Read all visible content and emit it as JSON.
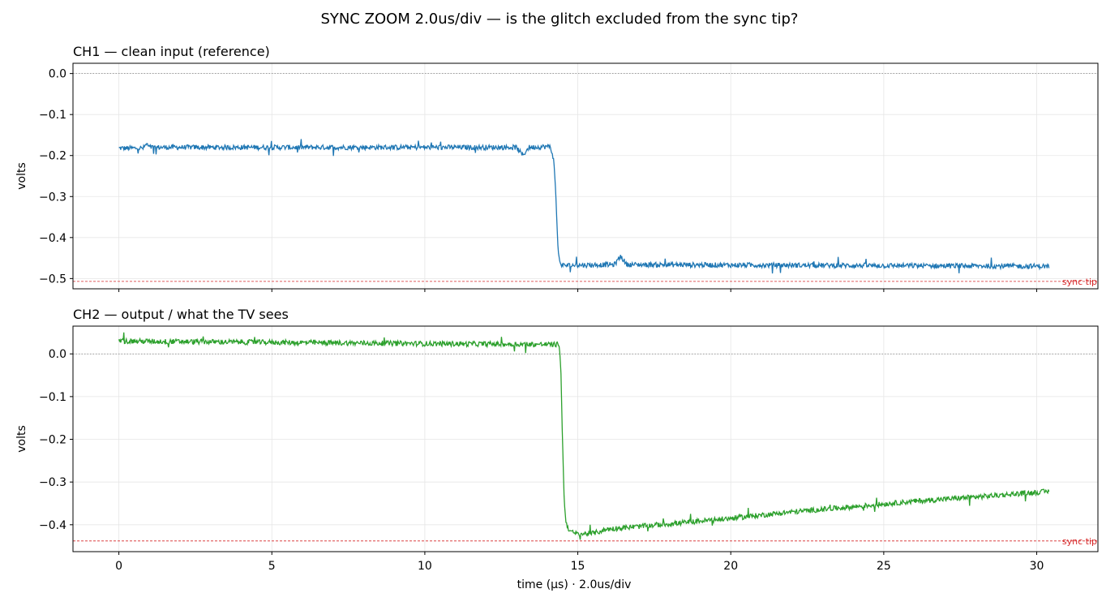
{
  "figure": {
    "title": "SYNC ZOOM  2.0us/div  —  is the glitch excluded from the sync tip?"
  },
  "chart_data": [
    {
      "type": "line",
      "title": "CH1 — clean input (reference)",
      "xlabel": "",
      "ylabel": "volts",
      "xlim": [
        -1.5,
        32.0
      ],
      "ylim": [
        -0.525,
        0.025
      ],
      "xticks": [
        0,
        5,
        10,
        15,
        20,
        25,
        30
      ],
      "yticks": [
        0.0,
        -0.1,
        -0.2,
        -0.3,
        -0.4,
        -0.5
      ],
      "ytick_labels": [
        "0.0",
        "−0.1",
        "−0.2",
        "−0.3",
        "−0.4",
        "−0.5"
      ],
      "grid": true,
      "reference_lines": [
        {
          "y": 0.0,
          "style": "dotted",
          "color": "#808080",
          "label": ""
        },
        {
          "y": -0.507,
          "style": "dashed",
          "color": "#d62728",
          "label": "sync tip"
        }
      ],
      "series": [
        {
          "color": "#1f77b4",
          "noise": 0.006,
          "x": [
            0,
            0.8,
            0.9,
            1.0,
            5,
            13.0,
            13.2,
            13.4,
            14.1,
            14.2,
            14.25,
            14.3,
            14.35,
            14.4,
            14.5,
            16.2,
            16.4,
            16.6,
            30.4
          ],
          "y": [
            -0.182,
            -0.182,
            -0.172,
            -0.18,
            -0.18,
            -0.18,
            -0.2,
            -0.18,
            -0.178,
            -0.205,
            -0.25,
            -0.33,
            -0.42,
            -0.46,
            -0.468,
            -0.466,
            -0.445,
            -0.466,
            -0.47
          ]
        }
      ]
    },
    {
      "type": "line",
      "title": "CH2 — output / what the TV sees",
      "xlabel": "time (µs)   ·   2.0us/div",
      "ylabel": "volts",
      "xlim": [
        -1.5,
        32.0
      ],
      "ylim": [
        -0.463,
        0.065
      ],
      "xticks": [
        0,
        5,
        10,
        15,
        20,
        25,
        30
      ],
      "xtick_labels": [
        "0",
        "5",
        "10",
        "15",
        "20",
        "25",
        "30"
      ],
      "yticks": [
        0.0,
        -0.1,
        -0.2,
        -0.3,
        -0.4
      ],
      "ytick_labels": [
        "0.0",
        "−0.1",
        "−0.2",
        "−0.3",
        "−0.4"
      ],
      "grid": true,
      "reference_lines": [
        {
          "y": 0.0,
          "style": "dotted",
          "color": "#808080",
          "label": ""
        },
        {
          "y": -0.438,
          "style": "dashed",
          "color": "#d62728",
          "label": "sync tip"
        }
      ],
      "series": [
        {
          "color": "#2ca02c",
          "noise": 0.006,
          "x": [
            0,
            5,
            10,
            14.4,
            14.45,
            14.5,
            14.55,
            14.6,
            14.7,
            14.8,
            15.0,
            15.5,
            16.0,
            18,
            20,
            22,
            24,
            26,
            28,
            30.4
          ],
          "y": [
            0.03,
            0.027,
            0.024,
            0.022,
            -0.05,
            -0.2,
            -0.33,
            -0.39,
            -0.41,
            -0.418,
            -0.422,
            -0.42,
            -0.41,
            -0.398,
            -0.385,
            -0.37,
            -0.358,
            -0.345,
            -0.335,
            -0.322
          ]
        }
      ]
    }
  ]
}
